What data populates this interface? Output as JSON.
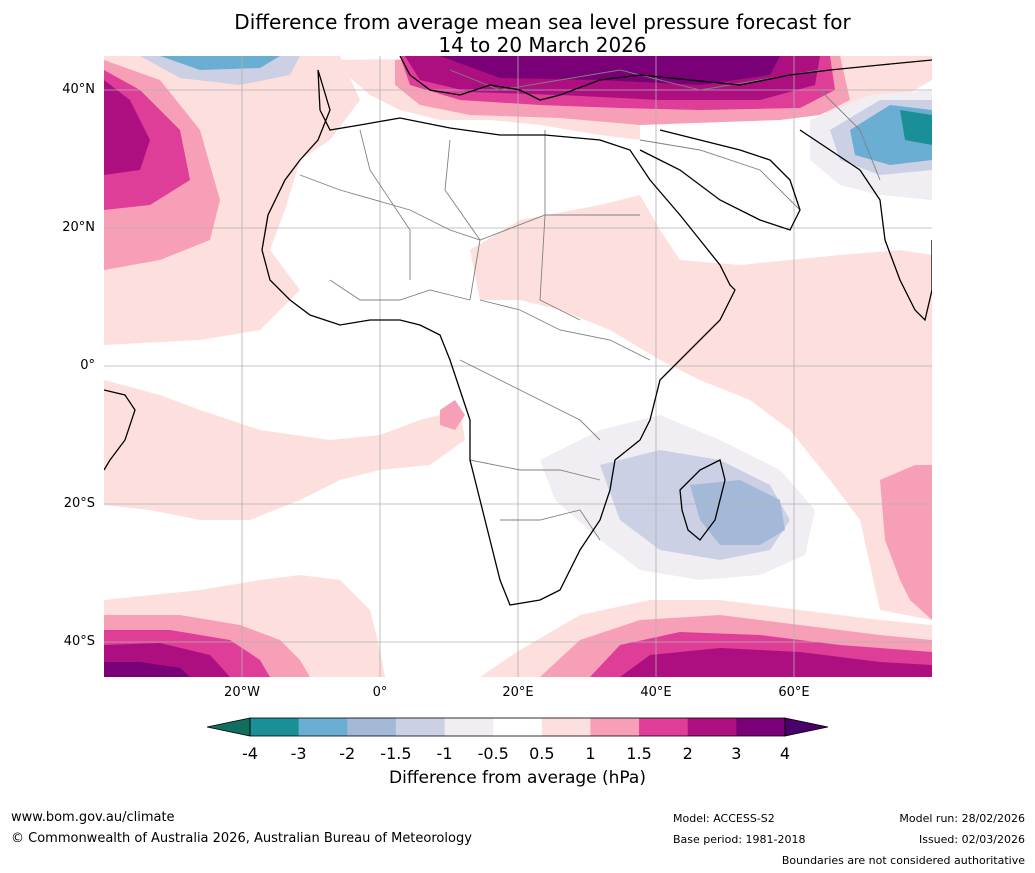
{
  "title": {
    "line1": "Difference from average mean sea level pressure forecast for",
    "line2": "14 to 20 March 2026"
  },
  "map": {
    "latitude_labels": [
      "40°N",
      "20°N",
      "0°",
      "20°S",
      "40°S"
    ],
    "longitude_labels": [
      "20°W",
      "0°",
      "20°E",
      "40°E",
      "60°E"
    ],
    "extent": {
      "lon_min": -40,
      "lon_max": 80,
      "lat_min": -45,
      "lat_max": 45
    }
  },
  "colorbar": {
    "ticks": [
      "-4",
      "-3",
      "-2",
      "-1.5",
      "-1",
      "-0.5",
      "0.5",
      "1",
      "1.5",
      "2",
      "3",
      "4"
    ],
    "colors": {
      "below": "#0f6e5e",
      "bins": [
        "#1b8f98",
        "#6aaed3",
        "#a4b9d8",
        "#ccd0e5",
        "#f0edf3",
        "#ffffff",
        "#fde0dd",
        "#f89fb8",
        "#de3d98",
        "#ad0f80",
        "#790076"
      ],
      "above": "#49006a"
    },
    "label": "Difference from average (hPa)"
  },
  "footer": {
    "website": "www.bom.gov.au/climate",
    "copyright": "© Commonwealth of Australia 2026, Australian Bureau of Meteorology",
    "model": "Model: ACCESS-S2",
    "base_period": "Base period: 1981-2018",
    "model_run": "Model run: 28/02/2026",
    "issued": "Issued: 02/03/2026",
    "disclaimer": "Boundaries are not considered authoritative"
  }
}
